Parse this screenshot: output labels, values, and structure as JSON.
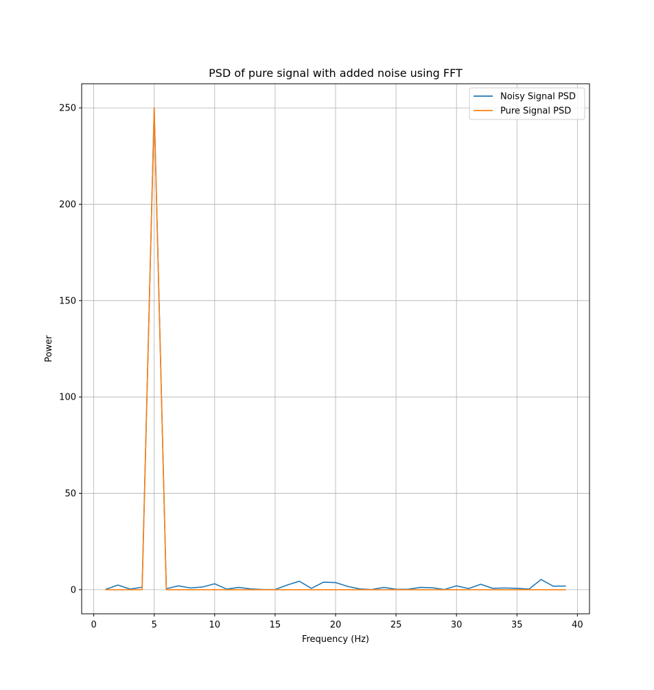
{
  "chart_data": {
    "type": "line",
    "title": "PSD of pure signal with added noise using FFT",
    "xlabel": "Frequency (Hz)",
    "ylabel": "Power",
    "xlim": [
      -1,
      41
    ],
    "ylim": [
      -12.5,
      262.5
    ],
    "xticks": [
      0,
      5,
      10,
      15,
      20,
      25,
      30,
      35,
      40
    ],
    "yticks": [
      0,
      50,
      100,
      150,
      200,
      250
    ],
    "grid": true,
    "legend_position": "top-right",
    "x": [
      1,
      2,
      3,
      4,
      5,
      6,
      7,
      8,
      9,
      10,
      11,
      12,
      13,
      14,
      15,
      16,
      17,
      18,
      19,
      20,
      21,
      22,
      23,
      24,
      25,
      26,
      27,
      28,
      29,
      30,
      31,
      32,
      33,
      34,
      35,
      36,
      37,
      38,
      39
    ],
    "series": [
      {
        "name": "Noisy Signal PSD",
        "color": "#1f77b4",
        "values": [
          0.2,
          2.4,
          0.3,
          1.3,
          250,
          0.5,
          2.0,
          0.9,
          1.4,
          3.1,
          0.3,
          1.2,
          0.4,
          0.1,
          0.1,
          2.4,
          4.4,
          0.7,
          3.9,
          3.7,
          1.7,
          0.4,
          0.1,
          1.2,
          0.2,
          0.2,
          1.2,
          1.0,
          0.1,
          2.0,
          0.6,
          2.8,
          0.7,
          0.9,
          0.7,
          0.3,
          5.3,
          1.8,
          1.9
        ]
      },
      {
        "name": "Pure Signal PSD",
        "color": "#ff7f0e",
        "values": [
          0,
          0,
          0,
          0,
          250,
          0,
          0,
          0,
          0,
          0,
          0,
          0,
          0,
          0,
          0,
          0,
          0,
          0,
          0,
          0,
          0,
          0,
          0,
          0,
          0,
          0,
          0,
          0,
          0,
          0,
          0,
          0,
          0,
          0,
          0,
          0,
          0,
          0,
          0
        ]
      }
    ]
  }
}
